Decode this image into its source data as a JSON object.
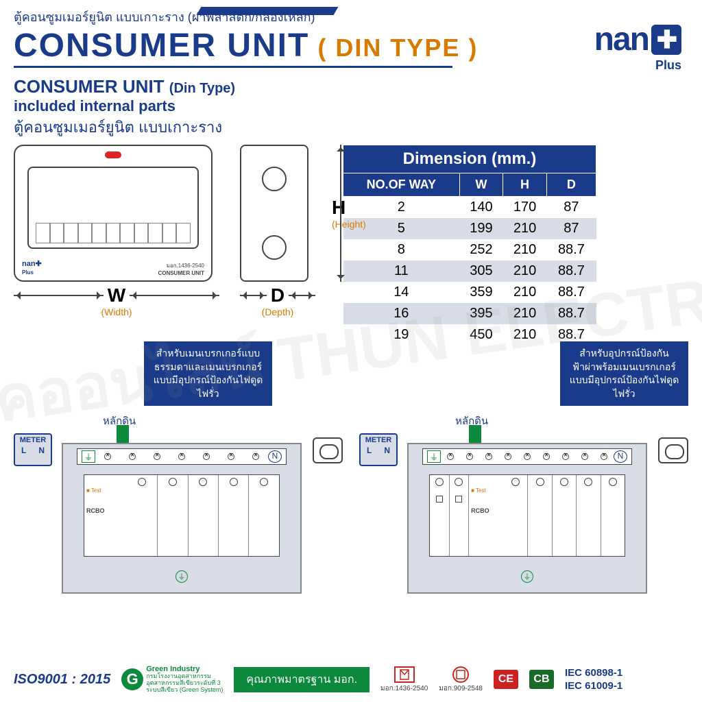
{
  "colors": {
    "navy": "#1a3a8a",
    "orange": "#d97a00",
    "green": "#0a8a3a",
    "red": "#c22",
    "gray_bg": "#d8dce6"
  },
  "header": {
    "thai_subtitle": "ตู้คอนซูมเมอร์ยูนิต แบบเกาะราง (ฝาพลาสติก/กล่องเหล็ก)",
    "title_main": "CONSUMER UNIT",
    "title_paren": "( DIN TYPE )",
    "logo_brand": "nan",
    "logo_plus": "✚",
    "logo_sub": "Plus"
  },
  "section2": {
    "line1a": "CONSUMER UNIT",
    "line1b": "(Din Type)",
    "line2": "included internal parts",
    "line3": "ตู้คอนซูมเมอร์ยูนิต แบบเกาะราง"
  },
  "front_view": {
    "logo": "nan✚",
    "logo_sub": "Plus",
    "label1": "มอก.1436-2540",
    "label2": "CONSUMER UNIT",
    "dim_w_letter": "W",
    "dim_w_label": "(Width)"
  },
  "side_view": {
    "dim_h_letter": "H",
    "dim_h_label": "(Height)",
    "dim_d_letter": "D",
    "dim_d_label": "(Depth)"
  },
  "dimension_table": {
    "header_merge": "Dimension (mm.)",
    "columns": [
      "NO.OF WAY",
      "W",
      "H",
      "D"
    ],
    "rows": [
      [
        "2",
        "140",
        "170",
        "87"
      ],
      [
        "5",
        "199",
        "210",
        "87"
      ],
      [
        "8",
        "252",
        "210",
        "88.7"
      ],
      [
        "11",
        "305",
        "210",
        "88.7"
      ],
      [
        "14",
        "359",
        "210",
        "88.7"
      ],
      [
        "16",
        "395",
        "210",
        "88.7"
      ],
      [
        "19",
        "450",
        "210",
        "88.7"
      ]
    ]
  },
  "callout_left": "สำหรับเมนเบรกเกอร์แบบธรรมดาและเมนเบรกเกอร์แบบมีอุปกรณ์ป้องกันไฟดูดไฟรั่ว",
  "callout_right": "สำหรับอุปกรณ์ป้องกันฟ้าผ่าพร้อมเมนเบรกเกอร์แบบมีอุปกรณ์ป้องกันไฟดูดไฟรั่ว",
  "wiring": {
    "ground": "หลักดิน",
    "meter": "METER",
    "meter_l": "L",
    "meter_n": "N",
    "rcbo": "RCBO",
    "test": "Test",
    "ground_sym": "⏚",
    "n_sym": "N"
  },
  "footer": {
    "iso": "ISO9001 : 2015",
    "green_title": "Green Industry",
    "green_sub": "กรมโรงงานอุตสาหกรรม\nอุตสาหกรรมสีเขียวระดับที่ 3\nระบบสีเขียว (Green System)",
    "quality": "คุณภาพมาตรฐาน มอก.",
    "tis1": "มอก.1436-2540",
    "tis2": "มอก.909-2548",
    "ce": "CE",
    "cb": "CB",
    "iec1": "IEC 60898-1",
    "iec2": "IEC 61009-1"
  },
  "watermark": "ไทยอิเล็กทริคออนไลน์\nTHUN ELECTRIC ONLINE"
}
